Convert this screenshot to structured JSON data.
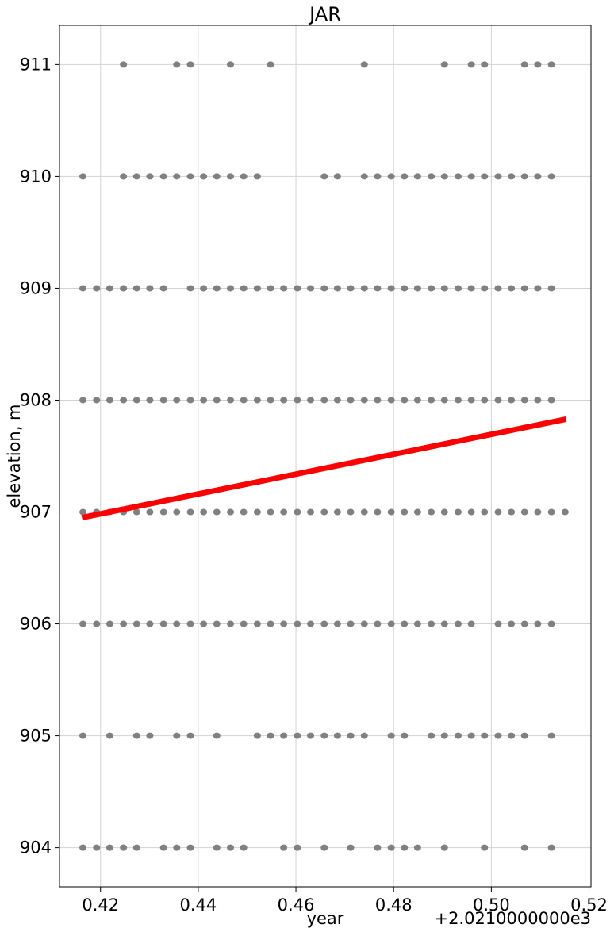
{
  "chart_data": {
    "type": "scatter",
    "title": "JAR",
    "xlabel": "year",
    "ylabel": "elevation, m",
    "x_offset_label": "+2.0210000000e3",
    "xlim": [
      0.4116,
      0.5204
    ],
    "ylim": [
      903.65,
      911.35
    ],
    "xticks": [
      "0.42",
      "0.44",
      "0.46",
      "0.48",
      "0.50",
      "0.52"
    ],
    "yticks": [
      "904",
      "905",
      "906",
      "907",
      "908",
      "909",
      "910",
      "911"
    ],
    "grid": true,
    "colors": {
      "points": "#808080",
      "trend": "#ff0000",
      "grid": "#d3d3d3"
    },
    "trend_line": {
      "x": [
        0.4162,
        0.5153
      ],
      "y": [
        906.95,
        907.83
      ]
    },
    "points": [
      {
        "elevation": 911,
        "x": [
          0.4247,
          0.4356,
          0.4384,
          0.4466,
          0.4548,
          0.474,
          0.4904,
          0.4959,
          0.4986,
          0.5068,
          0.5095,
          0.5123
        ]
      },
      {
        "elevation": 910,
        "x": [
          0.4164,
          0.4247,
          0.4274,
          0.4301,
          0.4329,
          0.4356,
          0.4384,
          0.4411,
          0.4438,
          0.4466,
          0.4493,
          0.4521,
          0.4658,
          0.4685,
          0.474,
          0.4767,
          0.4795,
          0.4822,
          0.4849,
          0.4877,
          0.4904,
          0.4932,
          0.4959,
          0.4986,
          0.5014,
          0.5041,
          0.5068,
          0.5095,
          0.5123
        ]
      },
      {
        "elevation": 909,
        "x": [
          0.4164,
          0.4192,
          0.4219,
          0.4247,
          0.4274,
          0.4301,
          0.4329,
          0.4384,
          0.4411,
          0.4438,
          0.4466,
          0.4493,
          0.4521,
          0.4548,
          0.4575,
          0.4603,
          0.463,
          0.4658,
          0.4685,
          0.4712,
          0.474,
          0.4767,
          0.4795,
          0.4822,
          0.4849,
          0.4877,
          0.4904,
          0.4932,
          0.4959,
          0.4986,
          0.5014,
          0.5041,
          0.5068,
          0.5095,
          0.5123
        ]
      },
      {
        "elevation": 908,
        "x": [
          0.4164,
          0.4192,
          0.4219,
          0.4247,
          0.4274,
          0.4301,
          0.4329,
          0.4356,
          0.4384,
          0.4411,
          0.4438,
          0.4466,
          0.4493,
          0.4521,
          0.4548,
          0.4575,
          0.4603,
          0.463,
          0.4658,
          0.4685,
          0.4712,
          0.474,
          0.4767,
          0.4795,
          0.4822,
          0.4849,
          0.4877,
          0.4904,
          0.4932,
          0.4959,
          0.4986,
          0.5014,
          0.5041,
          0.5068,
          0.5095,
          0.5123
        ]
      },
      {
        "elevation": 907,
        "x": [
          0.4164,
          0.4192,
          0.4219,
          0.4247,
          0.4274,
          0.4301,
          0.4329,
          0.4356,
          0.4384,
          0.4411,
          0.4438,
          0.4466,
          0.4493,
          0.4521,
          0.4548,
          0.4575,
          0.4603,
          0.463,
          0.4658,
          0.4685,
          0.4712,
          0.474,
          0.4767,
          0.4795,
          0.4822,
          0.4849,
          0.4877,
          0.4904,
          0.4932,
          0.4959,
          0.4986,
          0.5014,
          0.5041,
          0.5068,
          0.5095,
          0.5123,
          0.5151
        ]
      },
      {
        "elevation": 906,
        "x": [
          0.4164,
          0.4192,
          0.4219,
          0.4247,
          0.4274,
          0.4301,
          0.4329,
          0.4356,
          0.4384,
          0.4411,
          0.4438,
          0.4466,
          0.4493,
          0.4521,
          0.4548,
          0.4575,
          0.4603,
          0.463,
          0.4658,
          0.4685,
          0.4712,
          0.474,
          0.4767,
          0.4795,
          0.4822,
          0.4849,
          0.4877,
          0.4904,
          0.4932,
          0.4959,
          0.5014,
          0.5041,
          0.5068,
          0.5095,
          0.5123
        ]
      },
      {
        "elevation": 905,
        "x": [
          0.4164,
          0.4219,
          0.4274,
          0.4301,
          0.4356,
          0.4384,
          0.4438,
          0.4521,
          0.4548,
          0.4575,
          0.4603,
          0.463,
          0.4658,
          0.4685,
          0.4712,
          0.474,
          0.4795,
          0.4822,
          0.4877,
          0.4904,
          0.4932,
          0.4959,
          0.4986,
          0.5014,
          0.5041,
          0.5068,
          0.5123
        ]
      },
      {
        "elevation": 904,
        "x": [
          0.4164,
          0.4192,
          0.4219,
          0.4247,
          0.4274,
          0.4329,
          0.4356,
          0.4384,
          0.4438,
          0.4466,
          0.4493,
          0.4575,
          0.4603,
          0.4658,
          0.4712,
          0.4767,
          0.4795,
          0.4822,
          0.4849,
          0.4904,
          0.4986,
          0.5068,
          0.5123
        ]
      }
    ]
  }
}
